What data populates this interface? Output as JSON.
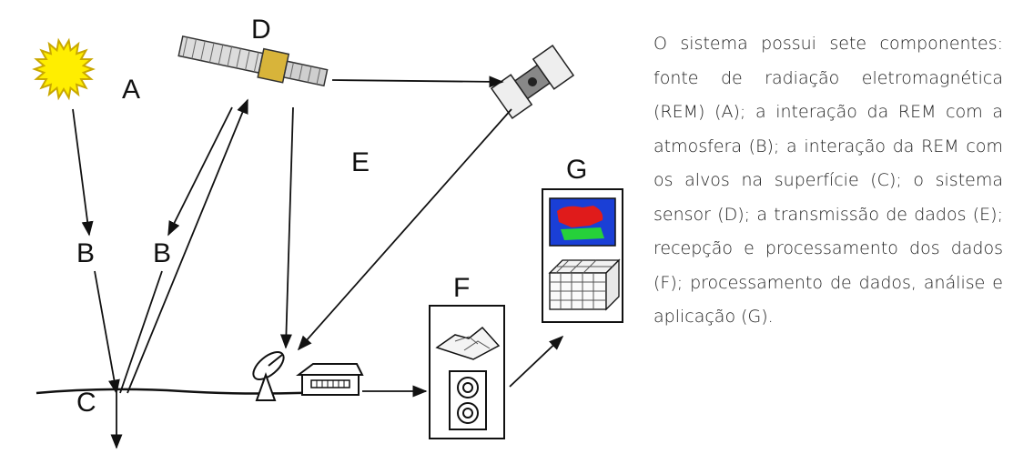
{
  "labels": {
    "a": "A",
    "b1": "B",
    "b2": "B",
    "c": "C",
    "d": "D",
    "e": "E",
    "f": "F",
    "g": "G"
  },
  "description": "O sistema possui sete componentes: fonte de radiação eletromagnética (REM) (A); a interação da REM com a atmosfera (B); a interação da REM com os alvos na superfície (C); o sistema sensor (D); a transmissão de dados (E); recepção e processamento dos dados (F); processamento de dados, análise e aplicação (G).",
  "colors": {
    "sun": "#ffee00",
    "sun_stroke": "#c9a800",
    "map_water": "#1a3fd6",
    "map_land_red": "#e01b1b",
    "map_land_green": "#26d13a",
    "ink": "#111111"
  },
  "icons": [
    "sun-icon",
    "satellite-icon",
    "relay-satellite-icon",
    "antenna-dish-icon",
    "ground-station-icon",
    "terrain-3d-icon",
    "tape-reels-icon",
    "classified-map-icon",
    "data-cube-icon"
  ]
}
